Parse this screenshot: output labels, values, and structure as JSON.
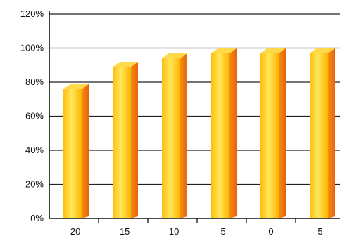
{
  "chart_data": {
    "type": "bar",
    "categories": [
      "-20",
      "-15",
      "-10",
      "-5",
      "0",
      "5"
    ],
    "values": [
      76,
      89,
      94,
      97,
      97,
      97
    ],
    "ylim": [
      0,
      120
    ],
    "yticks": [
      0,
      20,
      40,
      60,
      80,
      100,
      120
    ],
    "ytick_labels": [
      "0%",
      "20%",
      "40%",
      "60%",
      "80%",
      "100%",
      "120%"
    ],
    "grid": true,
    "legend": "none",
    "colors": {
      "bar_front_light": "#ffe44a",
      "bar_front_dark": "#ffb300",
      "bar_side": "#f07a10",
      "bar_top": "#ffd94a",
      "gridline": "#222222"
    }
  }
}
